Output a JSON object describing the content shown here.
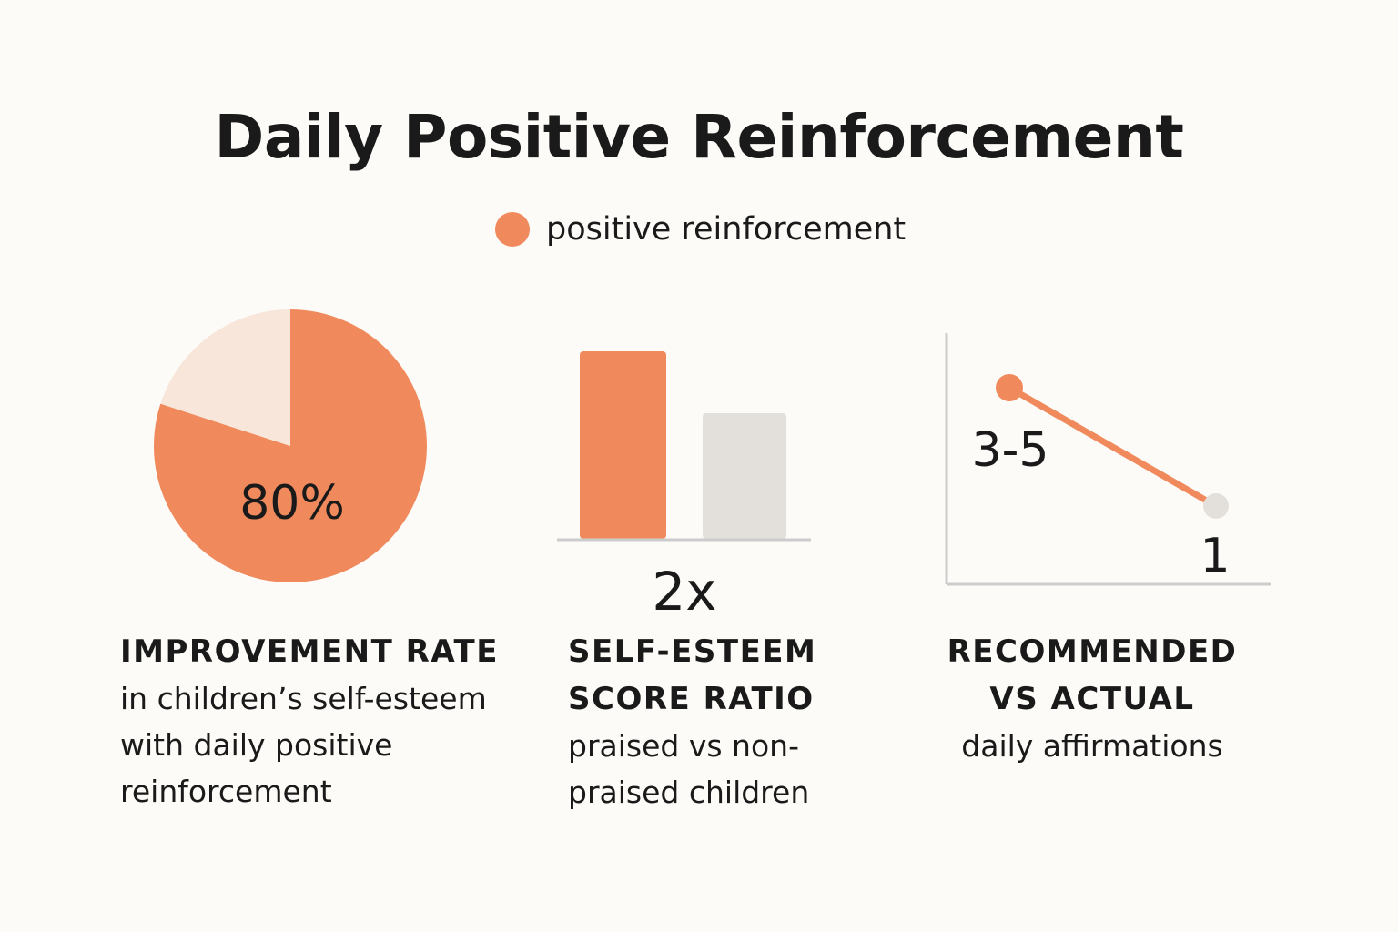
{
  "title": "Daily Positive Reinforcement",
  "legend": {
    "label": "positive reinforcement",
    "color": "#f08a5d",
    "icon": "orange-circle"
  },
  "colors": {
    "accent": "#f08a5d",
    "pie_remainder": "#f8e6da",
    "neutral_bar": "#e3e0db",
    "axis": "#cccccc",
    "neutral_point": "#e3e0db"
  },
  "chart_data": [
    {
      "type": "pie",
      "slices": [
        {
          "label": "positive reinforcement",
          "value": 80
        },
        {
          "label": "",
          "value": 20
        }
      ],
      "center_label": "80%",
      "caption_head": "IMPROVEMENT RATE",
      "caption_body": "in children’s self-esteem with daily positive reinforcement"
    },
    {
      "type": "bar",
      "categories": [
        "praised",
        "non-praised"
      ],
      "values": [
        2,
        1
      ],
      "value_label": "2x",
      "caption_head_1": "SELF-ESTEEM",
      "caption_head_2": "SCORE RATIO",
      "caption_body": "praised vs non-praised children"
    },
    {
      "type": "line",
      "x": [
        "recommended",
        "actual"
      ],
      "y": [
        4,
        1
      ],
      "labels": [
        "3-5",
        "1"
      ],
      "caption_head_1": "RECOMMENDED",
      "caption_head_2": "VS ACTUAL",
      "caption_body": "daily affirmations"
    }
  ]
}
